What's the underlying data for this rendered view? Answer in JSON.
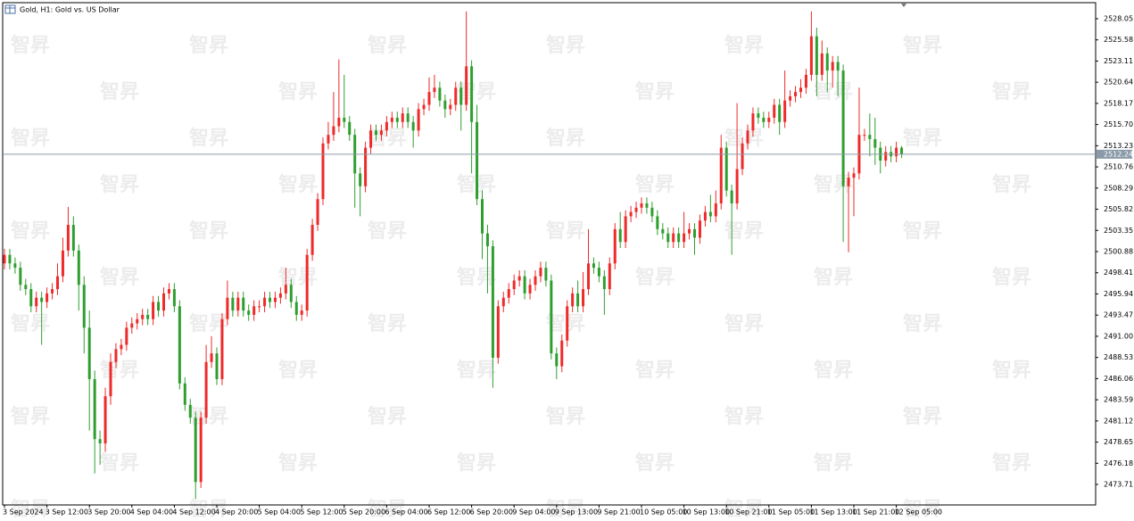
{
  "chart_data": {
    "type": "candlestick",
    "title": "Gold, H1:  Gold vs. US Dollar",
    "watermark": "智昇",
    "up_color": "#ef2a2a",
    "down_color": "#2f9e2f",
    "grid": false,
    "ylim": [
      2471.32,
      2529.92
    ],
    "yticks": [
      2473.71,
      2476.18,
      2478.65,
      2481.12,
      2483.59,
      2486.06,
      2488.53,
      {
        "value": 2491.0,
        "label": "2491.00"
      },
      2493.47,
      2495.94,
      2498.41,
      2500.88,
      2503.35,
      2505.82,
      2508.29,
      2510.76,
      2513.23,
      {
        "value": 2515.7,
        "label": "2515.70"
      },
      2518.17,
      2520.64,
      2523.11,
      2525.58,
      2528.05
    ],
    "categories": [
      "3 Sep 2024",
      null,
      null,
      null,
      null,
      null,
      null,
      null,
      "3 Sep 12:00",
      null,
      null,
      null,
      null,
      null,
      null,
      null,
      "3 Sep 20:00",
      null,
      null,
      null,
      null,
      null,
      null,
      null,
      "4 Sep 04:00",
      null,
      null,
      null,
      null,
      null,
      null,
      null,
      "4 Sep 12:00",
      null,
      null,
      null,
      null,
      null,
      null,
      null,
      "4 Sep 20:00",
      null,
      null,
      null,
      null,
      null,
      null,
      null,
      "5 Sep 04:00",
      null,
      null,
      null,
      null,
      null,
      null,
      null,
      "5 Sep 12:00",
      null,
      null,
      null,
      null,
      null,
      null,
      null,
      "5 Sep 20:00",
      null,
      null,
      null,
      null,
      null,
      null,
      null,
      "6 Sep 04:00",
      null,
      null,
      null,
      null,
      null,
      null,
      null,
      "6 Sep 12:00",
      null,
      null,
      null,
      null,
      null,
      null,
      null,
      "6 Sep 20:00",
      null,
      null,
      null,
      null,
      null,
      null,
      null,
      "9 Sep 04:00",
      null,
      null,
      null,
      null,
      null,
      null,
      null,
      "9 Sep 13:00",
      null,
      null,
      null,
      null,
      null,
      null,
      null,
      "9 Sep 21:00",
      null,
      null,
      null,
      null,
      null,
      null,
      null,
      "10 Sep 05:00",
      null,
      null,
      null,
      null,
      null,
      null,
      null,
      "10 Sep 13:00",
      null,
      null,
      null,
      null,
      null,
      null,
      null,
      "10 Sep 21:00",
      null,
      null,
      null,
      null,
      null,
      null,
      null,
      "11 Sep 05:00",
      null,
      null,
      null,
      null,
      null,
      null,
      null,
      "11 Sep 13:00",
      null,
      null,
      null,
      null,
      null,
      null,
      null,
      "11 Sep 21:00",
      null,
      null,
      null,
      null,
      null,
      null,
      null,
      "12 Sep 05:00",
      null
    ],
    "open": [
      2499.5,
      2500.5,
      2499.5,
      2499,
      2497,
      2496.5,
      2494.5,
      2495.5,
      2495,
      2496,
      2496.5,
      2498,
      2501,
      2504,
      2501,
      2497,
      2492,
      2486,
      2479,
      2478.5,
      2484,
      2488,
      2489.5,
      2490,
      2492,
      2492.5,
      2493,
      2493.5,
      2493,
      2495,
      2494,
      2496,
      2496.5,
      2494.5,
      2485.5,
      2483,
      2481.5,
      2474,
      2481.5,
      2488,
      2489,
      2486,
      2493,
      2495.5,
      2494,
      2495.5,
      2494,
      2493.5,
      2494.5,
      2494.5,
      2495.5,
      2495,
      2495.5,
      2496,
      2497,
      2495,
      2493.5,
      2494,
      2500.5,
      2504,
      2507,
      2513.5,
      2514.5,
      2515.5,
      2516.5,
      2516,
      2514.5,
      2510,
      2508.5,
      2513,
      2515,
      2514.5,
      2515,
      2516,
      2516.5,
      2516,
      2517,
      2516,
      2515,
      2517.5,
      2518,
      2519.5,
      2520,
      2518.5,
      2517.5,
      2518,
      2520,
      2518,
      2522.5,
      2516,
      2507,
      2503,
      2501.5,
      2488.5,
      2494.5,
      2495.5,
      2496.5,
      2497.5,
      2498,
      2496,
      2497,
      2498,
      2499,
      2497.5,
      2489,
      2487.5,
      2490.5,
      2494.5,
      2496,
      2494.5,
      2496.5,
      2499.5,
      2499,
      2498,
      2496.5,
      2499.5,
      2503.5,
      2502,
      2505,
      2505.5,
      2506,
      2506.5,
      2506,
      2505,
      2503.5,
      2503,
      2502,
      2503,
      2502,
      2503,
      2503.5,
      2502.5,
      2504.5,
      2505.5,
      2505,
      2506.5,
      2513,
      2508,
      2506.5,
      2510.5,
      2513.5,
      2515,
      2517,
      2516.5,
      2516,
      2516.5,
      2518,
      2516,
      2518.5,
      2519,
      2519.5,
      2520,
      2521.5,
      2526,
      2521.5,
      2524,
      2522,
      2523,
      2522,
      2508.5,
      2509.5,
      2510,
      2514.5,
      2514.5,
      2514,
      2513,
      2511.5,
      2512.5,
      2512,
      2513
    ],
    "high": [
      2501.2,
      2501.2,
      2500.2,
      2499.7,
      2497.7,
      2497.2,
      2496.2,
      2496.2,
      2496.7,
      2497.2,
      2499.5,
      2502.5,
      2506.1,
      2505,
      2501.7,
      2498,
      2494,
      2487,
      2480,
      2485,
      2489,
      2490.2,
      2490.7,
      2492.7,
      2493.2,
      2493.7,
      2494.2,
      2494.2,
      2495.7,
      2495.7,
      2496.7,
      2497.2,
      2497.2,
      2495.2,
      2486.2,
      2483.7,
      2482.2,
      2482.2,
      2490,
      2491,
      2489.7,
      2493.7,
      2497.5,
      2496.2,
      2496.2,
      2496.2,
      2494.7,
      2495.2,
      2495.2,
      2496.2,
      2496.2,
      2496.2,
      2496.7,
      2499,
      2497.7,
      2495.7,
      2494.7,
      2501.2,
      2504.7,
      2507.7,
      2514.2,
      2516,
      2519.5,
      2523.3,
      2521.5,
      2516.7,
      2515.2,
      2510.7,
      2513.7,
      2515.7,
      2515.7,
      2515.7,
      2516.7,
      2517.2,
      2517.2,
      2517.7,
      2517.7,
      2516.7,
      2518.2,
      2518.7,
      2521.2,
      2521.5,
      2520.7,
      2519.2,
      2518.7,
      2520.7,
      2520.7,
      2528.9,
      2523.2,
      2518,
      2508,
      2504,
      2502.2,
      2495.2,
      2496.2,
      2497.2,
      2498.2,
      2498.7,
      2498.7,
      2497.7,
      2498.7,
      2499.7,
      2499.7,
      2498.2,
      2489.7,
      2491.2,
      2495.2,
      2496.7,
      2497.5,
      2498.5,
      2503.5,
      2500.2,
      2499.7,
      2498.7,
      2500.2,
      2504.2,
      2505.5,
      2505.7,
      2506.2,
      2506.7,
      2507.2,
      2507.2,
      2506.7,
      2505.7,
      2504.2,
      2503.7,
      2503.7,
      2503.7,
      2505.5,
      2504.2,
      2504.2,
      2505.2,
      2506.2,
      2507.5,
      2508,
      2514.5,
      2513.7,
      2508.7,
      2518.2,
      2514.2,
      2515.7,
      2517.7,
      2517.7,
      2517.2,
      2517.2,
      2518.7,
      2518.7,
      2522,
      2519.7,
      2520.2,
      2521,
      2522.2,
      2528.9,
      2527,
      2525.5,
      2524.7,
      2523.7,
      2523.7,
      2522.7,
      2510.2,
      2510.7,
      2520,
      2515.2,
      2517,
      2516.5,
      2513.7,
      2513.2,
      2513.2,
      2513.7,
      2513.2
    ],
    "low": [
      2498.8,
      2498.8,
      2498.3,
      2496.3,
      2495.8,
      2493.8,
      2493.8,
      2490,
      2494.3,
      2495.3,
      2495.8,
      2497.3,
      2500.3,
      2500.3,
      2494,
      2489,
      2480,
      2475,
      2476,
      2477.5,
      2483,
      2487.3,
      2488.8,
      2489.3,
      2491.3,
      2491.8,
      2492.3,
      2492.3,
      2492.3,
      2493.3,
      2493.3,
      2495.3,
      2493.8,
      2484.8,
      2482.3,
      2480.8,
      2472,
      2473.3,
      2480.8,
      2487.3,
      2485.3,
      2485.3,
      2492.3,
      2493.3,
      2493.3,
      2493.3,
      2492.8,
      2492.8,
      2493.8,
      2493.8,
      2494.3,
      2494.3,
      2494.8,
      2495.3,
      2494.3,
      2492.8,
      2492.8,
      2493.3,
      2499.8,
      2503.3,
      2506.3,
      2512.8,
      2513.8,
      2514.8,
      2515.3,
      2513.8,
      2506,
      2505,
      2507.8,
      2512.3,
      2513.8,
      2513.8,
      2514.3,
      2515.3,
      2515.3,
      2515.3,
      2515.3,
      2513,
      2514.3,
      2516.8,
      2517.3,
      2518.8,
      2517.8,
      2516.5,
      2516.8,
      2517.3,
      2515,
      2517.3,
      2510,
      2506.3,
      2500,
      2496,
      2485,
      2487.8,
      2493.8,
      2494.8,
      2495.8,
      2496.8,
      2495.3,
      2495.3,
      2496.3,
      2497.3,
      2496.8,
      2488.3,
      2486,
      2486.8,
      2489.8,
      2493.8,
      2493.8,
      2493.8,
      2495.8,
      2498.3,
      2497.3,
      2493.5,
      2495.8,
      2498.8,
      2501.3,
      2501.3,
      2504.3,
      2504.8,
      2505.3,
      2505.3,
      2504.3,
      2502.8,
      2502.3,
      2501.3,
      2501.3,
      2501.3,
      2501.3,
      2502.3,
      2500.5,
      2501.8,
      2503.8,
      2504.3,
      2504.3,
      2505.8,
      2507.3,
      2500.5,
      2505.8,
      2509.8,
      2512.8,
      2514.3,
      2515.8,
      2515.3,
      2515.3,
      2515.8,
      2514.5,
      2515.3,
      2517.8,
      2518.3,
      2518.8,
      2519.3,
      2520.8,
      2519,
      2520.8,
      2519.5,
      2520,
      2519,
      2502,
      2500.8,
      2505,
      2509.3,
      2513.8,
      2512,
      2511,
      2510,
      2510.8,
      2511.3,
      2511.3,
      2511.8
    ],
    "close": [
      2500.5,
      2499.5,
      2499,
      2497,
      2496.5,
      2494.5,
      2495.5,
      2495,
      2496,
      2496.5,
      2498,
      2501,
      2504,
      2501,
      2497,
      2492,
      2486,
      2479,
      2478.5,
      2484,
      2488,
      2489.5,
      2490,
      2492,
      2492.5,
      2493,
      2493.5,
      2493,
      2495,
      2494,
      2496,
      2496.5,
      2494.5,
      2485.5,
      2483,
      2481.5,
      2474,
      2481.5,
      2488,
      2489,
      2486,
      2493,
      2495.5,
      2494,
      2495.5,
      2494,
      2493.5,
      2494.5,
      2494.5,
      2495.5,
      2495,
      2495.5,
      2496,
      2497,
      2495,
      2493.5,
      2494,
      2500.5,
      2504,
      2507,
      2513.5,
      2514.5,
      2515.5,
      2516.5,
      2516,
      2514.5,
      2510,
      2508.5,
      2513,
      2515,
      2514.5,
      2515,
      2516,
      2516.5,
      2516,
      2517,
      2516,
      2515,
      2517.5,
      2518,
      2519.5,
      2520,
      2518.5,
      2517.5,
      2518,
      2520,
      2518,
      2522.5,
      2516,
      2507,
      2503,
      2501.5,
      2488.5,
      2494.5,
      2495.5,
      2496.5,
      2497.5,
      2498,
      2496,
      2497,
      2498,
      2499,
      2497.5,
      2489,
      2487.5,
      2490.5,
      2494.5,
      2496,
      2494.5,
      2496.5,
      2499.5,
      2499,
      2498,
      2496.5,
      2499.5,
      2503.5,
      2502,
      2505,
      2505.5,
      2506,
      2506.5,
      2506,
      2505,
      2503.5,
      2503,
      2502,
      2503,
      2502,
      2503,
      2503.5,
      2502.5,
      2504.5,
      2505.5,
      2505,
      2506.5,
      2513,
      2508,
      2506.5,
      2510.5,
      2513.5,
      2515,
      2517,
      2516.5,
      2516,
      2516.5,
      2518,
      2516,
      2518.5,
      2519,
      2519.5,
      2520,
      2521.5,
      2526,
      2521.5,
      2524,
      2522,
      2523,
      2522,
      2508.5,
      2509.5,
      2510,
      2514.5,
      2514.5,
      2514,
      2513,
      2511.5,
      2512.5,
      2512,
      2513,
      2512.24
    ]
  }
}
